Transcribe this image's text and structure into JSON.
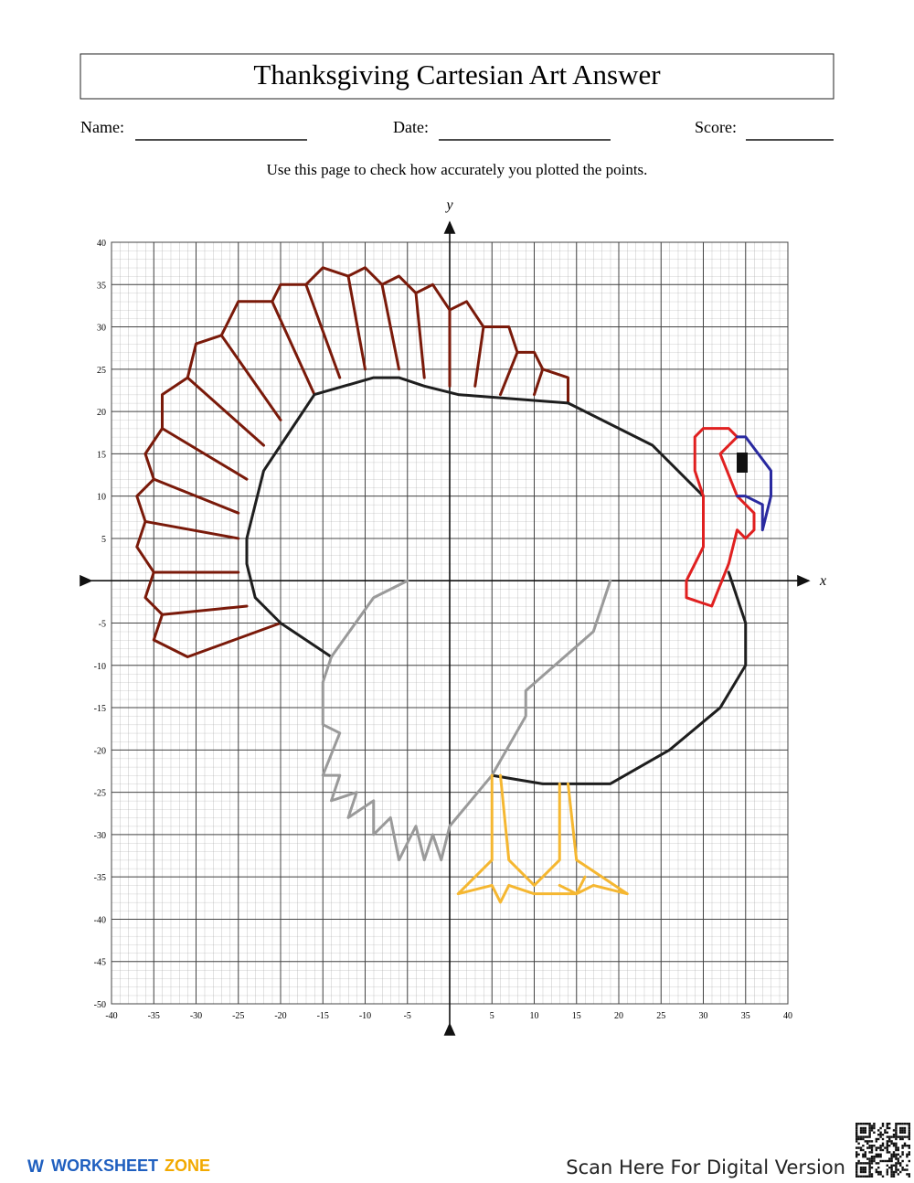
{
  "header": {
    "title": "Thanksgiving Cartesian Art Answer",
    "fields": [
      "Name:",
      "Date:",
      "Score:"
    ],
    "instruction": "Use this page to check how accurately you plotted the points."
  },
  "chart_data": {
    "type": "line",
    "x_label": "x",
    "y_label": "y",
    "xlim": [
      -40,
      40
    ],
    "ylim": [
      -50,
      40
    ],
    "xticks": [
      -40,
      -35,
      -30,
      -25,
      -20,
      -15,
      -10,
      -5,
      5,
      10,
      15,
      20,
      25,
      30,
      35,
      40
    ],
    "yticks": [
      40,
      35,
      30,
      25,
      20,
      15,
      10,
      5,
      -5,
      -10,
      -15,
      -20,
      -25,
      -30,
      -35,
      -40,
      -45,
      -50
    ],
    "grid": true,
    "series": [
      {
        "color": "#7a1a0a",
        "x": [
          -20,
          -31,
          -35,
          -34,
          -36,
          -35,
          -37,
          -36,
          -37,
          -35,
          -36,
          -34,
          -34,
          -31,
          -30,
          -27,
          -25,
          -21,
          -20,
          -17,
          -15,
          -12,
          -10,
          -8,
          -6,
          -4,
          -2,
          0,
          2,
          4,
          7,
          8,
          10,
          11,
          14,
          14
        ],
        "values": [
          -5,
          -9,
          -7,
          -4,
          -2,
          1,
          4,
          7,
          10,
          12,
          15,
          18,
          22,
          24,
          28,
          29,
          33,
          33,
          35,
          35,
          37,
          36,
          37,
          35,
          36,
          34,
          35,
          32,
          33,
          30,
          30,
          27,
          27,
          25,
          24,
          21
        ]
      },
      {
        "color": "#7a1a0a",
        "x": [
          -35,
          -25,
          null,
          -34,
          -24,
          null,
          -36,
          -25,
          null,
          -35,
          -25,
          null,
          -34,
          -24,
          null,
          -31,
          -22,
          null,
          -27,
          -20,
          null,
          -21,
          -16,
          null,
          -17,
          -13,
          null,
          -12,
          -10,
          null,
          -8,
          -6,
          null,
          -4,
          -3,
          null,
          0,
          0,
          null,
          4,
          3,
          null,
          8,
          6,
          null,
          11,
          10
        ],
        "values": [
          1,
          1,
          null,
          -4,
          -3,
          null,
          7,
          5,
          null,
          12,
          8,
          null,
          18,
          12,
          null,
          24,
          16,
          null,
          29,
          19,
          null,
          33,
          22,
          null,
          35,
          24,
          null,
          36,
          25,
          null,
          35,
          25,
          null,
          34,
          24,
          null,
          32,
          23,
          null,
          30,
          23,
          null,
          27,
          22,
          null,
          25,
          22
        ]
      },
      {
        "color": "#1e1e1e",
        "x": [
          -14,
          -20,
          -23,
          -24,
          -24,
          -23,
          -22,
          -20,
          -18,
          -16,
          -9,
          -6,
          -3,
          1,
          14,
          24,
          30
        ],
        "values": [
          -9,
          -5,
          -2,
          2,
          5,
          9,
          13,
          16,
          19,
          22,
          24,
          24,
          23,
          22,
          21,
          16,
          10
        ]
      },
      {
        "color": "#1e1e1e",
        "x": [
          33,
          34,
          35,
          35,
          32,
          26,
          19,
          11,
          5
        ],
        "values": [
          1,
          -2,
          -5,
          -10,
          -15,
          -20,
          -24,
          -24,
          -23
        ]
      },
      {
        "color": "#9a9a9a",
        "x": [
          -5,
          -9,
          -14,
          -15,
          -15,
          -13,
          -15,
          -13,
          -14,
          -11,
          -12,
          -9,
          -9,
          -7,
          -6,
          -4,
          -3,
          -2,
          -1,
          0,
          5,
          9,
          9,
          17,
          19
        ],
        "values": [
          0,
          -2,
          -9,
          -12,
          -17,
          -18,
          -23,
          -23,
          -26,
          -25,
          -28,
          -26,
          -30,
          -28,
          -33,
          -29,
          -33,
          -30,
          -33,
          -29,
          -23,
          -16,
          -13,
          -6,
          0
        ]
      },
      {
        "color": "#f5b731",
        "x": [
          5,
          5,
          1,
          5,
          6,
          7,
          10,
          13,
          15,
          17,
          21,
          null,
          6,
          7,
          10,
          null,
          13,
          13,
          10,
          null,
          14,
          15,
          21,
          null,
          13,
          15,
          16
        ],
        "values": [
          -23,
          -33,
          -37,
          -36,
          -38,
          -36,
          -37,
          -37,
          -37,
          -36,
          -37,
          null,
          -23,
          -33,
          -36,
          null,
          -24,
          -33,
          -36,
          null,
          -24,
          -33,
          -37,
          null,
          -36,
          -37,
          -35
        ]
      },
      {
        "color": "#e02020",
        "x": [
          30,
          29,
          29,
          30,
          33,
          34,
          32,
          34,
          36,
          36,
          35,
          34,
          33,
          31,
          28,
          28,
          30,
          30
        ],
        "values": [
          10,
          13,
          17,
          18,
          18,
          17,
          15,
          10,
          8,
          6,
          5,
          6,
          2,
          -3,
          -2,
          0,
          4,
          10
        ]
      },
      {
        "color": "#2a2aa0",
        "x": [
          34,
          35,
          38,
          38,
          37,
          37,
          35,
          34
        ],
        "values": [
          17,
          17,
          13,
          10,
          6,
          9,
          10,
          10
        ]
      }
    ]
  },
  "footer": {
    "brand": [
      "WORKSHEET",
      "ZONE"
    ],
    "scan_text": "Scan Here For Digital Version"
  }
}
